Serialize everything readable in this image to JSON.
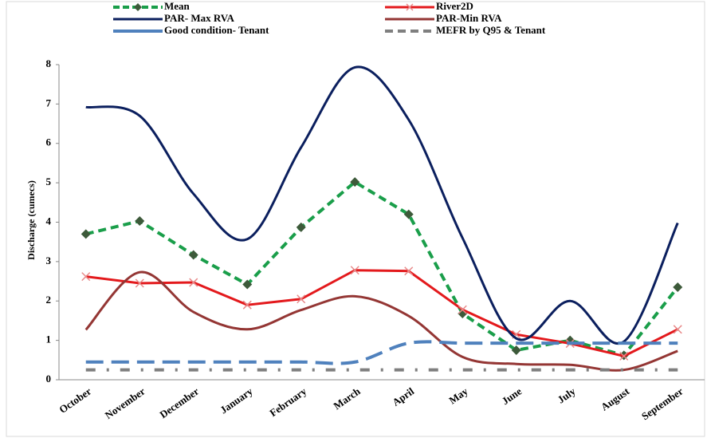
{
  "chart_data": {
    "type": "line",
    "y_label": "Discharge (cumecs)",
    "categories": [
      "October",
      "November",
      "December",
      "January",
      "February",
      "March",
      "April",
      "May",
      "June",
      "July",
      "August",
      "September"
    ],
    "ylim": [
      0,
      8
    ],
    "yticks": [
      0,
      1,
      2,
      3,
      4,
      5,
      6,
      7,
      8
    ],
    "series": [
      {
        "name": "Mean",
        "color": "#1a9e4a",
        "style": "dashed",
        "marker": "diamond",
        "smooth": false,
        "marker_color": "#3d5a3a",
        "values": [
          3.7,
          4.03,
          3.17,
          2.42,
          3.87,
          5.02,
          4.2,
          1.68,
          0.75,
          1.0,
          0.62,
          2.35
        ]
      },
      {
        "name": "River2D",
        "color": "#e3191c",
        "style": "solid",
        "marker": "x",
        "smooth": false,
        "marker_color": "#e88a8a",
        "values": [
          2.62,
          2.45,
          2.47,
          1.9,
          2.05,
          2.78,
          2.76,
          1.78,
          1.15,
          0.92,
          0.6,
          1.28
        ]
      },
      {
        "name": "PAR- Max RVA",
        "color": "#0b1f5e",
        "style": "solid",
        "marker": "none",
        "smooth": true,
        "values": [
          6.92,
          6.7,
          4.72,
          3.57,
          5.9,
          7.93,
          6.6,
          3.6,
          1.05,
          2.0,
          0.97,
          3.98
        ]
      },
      {
        "name": "PAR-Min RVA",
        "color": "#943634",
        "style": "solid",
        "marker": "none",
        "smooth": true,
        "values": [
          1.27,
          2.73,
          1.72,
          1.28,
          1.77,
          2.12,
          1.62,
          0.58,
          0.4,
          0.38,
          0.25,
          0.73
        ]
      },
      {
        "name": "Good condition- Tenant",
        "color": "#4f81bd",
        "style": "longdash",
        "marker": "none",
        "smooth": true,
        "values": [
          0.45,
          0.45,
          0.45,
          0.45,
          0.45,
          0.45,
          0.93,
          0.93,
          0.93,
          0.93,
          0.93,
          0.93
        ]
      },
      {
        "name": "MEFR by Q95 & Tenant",
        "color": "#7f7f7f",
        "style": "dashdot",
        "marker": "none",
        "smooth": false,
        "values": [
          0.25,
          0.25,
          0.25,
          0.25,
          0.25,
          0.25,
          0.25,
          0.25,
          0.25,
          0.25,
          0.25,
          0.25
        ]
      }
    ]
  }
}
